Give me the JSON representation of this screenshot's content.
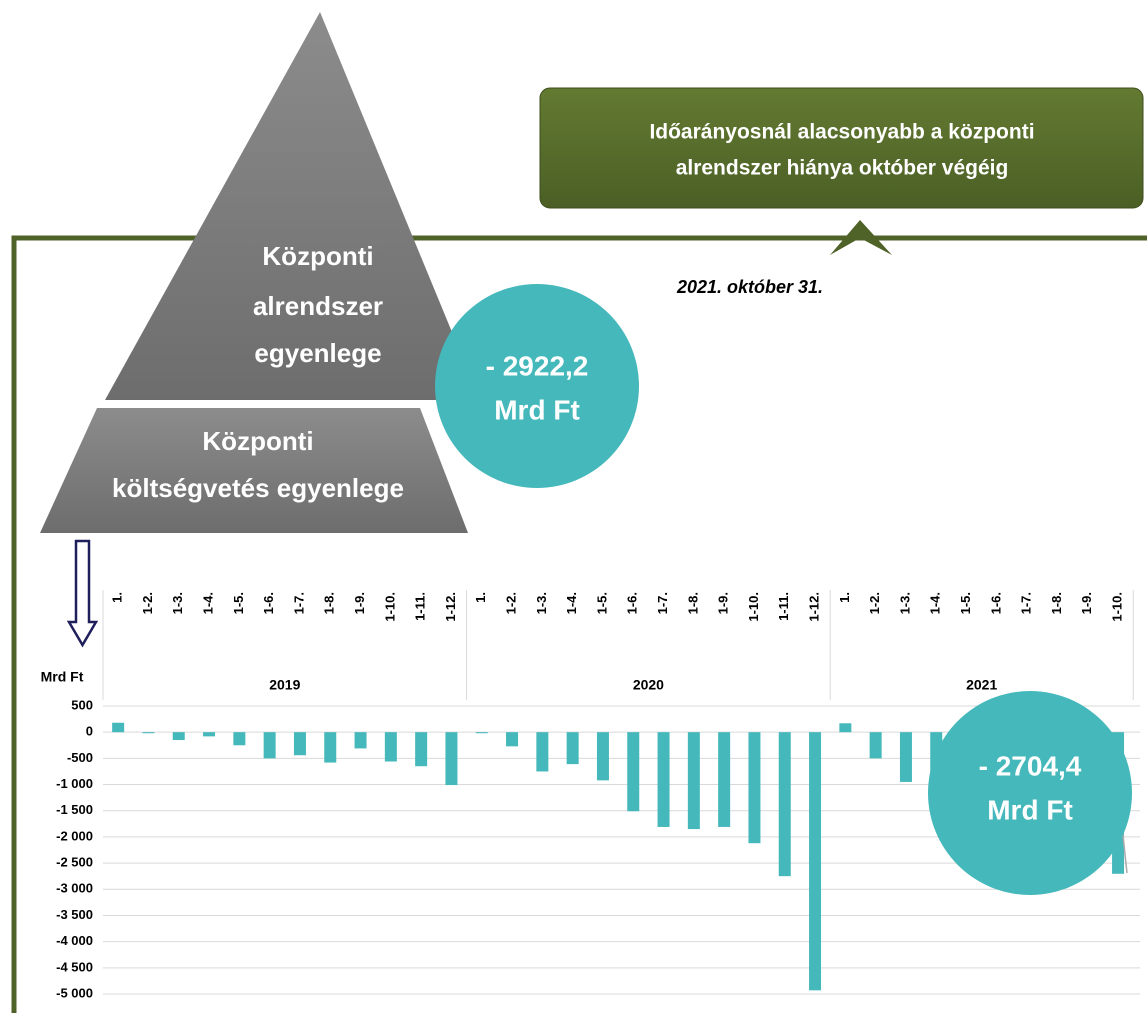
{
  "pyramid": {
    "top": [
      "Központi",
      "alrendszer",
      "egyenlege"
    ],
    "bottom": [
      "Központi",
      "költségvetés  egyenlege"
    ]
  },
  "callout_top": [
    "- 2922,2",
    "Mrd Ft"
  ],
  "headline": [
    "Időarányosnál alacsonyabb a központi",
    "alrendszer hiánya október végéig"
  ],
  "date": "2021. október 31.",
  "callout_bottom": [
    "- 2704,4",
    "Mrd Ft"
  ],
  "chart_data": {
    "type": "bar",
    "y_label": "Mrd Ft",
    "color": "#45b8bb",
    "grid": true,
    "groups": [
      {
        "name": "2019",
        "categories": [
          "1.",
          "1-2.",
          "1-3.",
          "1-4.",
          "1-5.",
          "1-6.",
          "1-7.",
          "1-8.",
          "1-9.",
          "1-10.",
          "1-11.",
          "1-12."
        ]
      },
      {
        "name": "2020",
        "categories": [
          "1.",
          "1-2.",
          "1-3.",
          "1-4.",
          "1-5.",
          "1-6.",
          "1-7.",
          "1-8.",
          "1-9.",
          "1-10.",
          "1-11.",
          "1-12."
        ]
      },
      {
        "name": "2021",
        "categories": [
          "1.",
          "1-2.",
          "1-3.",
          "1-4.",
          "1-5.",
          "1-6.",
          "1-7.",
          "1-8.",
          "1-9.",
          "1-10."
        ]
      }
    ],
    "values": [
      180,
      -20,
      -150,
      -80,
      -250,
      -500,
      -440,
      -580,
      -310,
      -560,
      -650,
      -1010,
      -20,
      -270,
      -750,
      -610,
      -920,
      -1510,
      -1810,
      -1850,
      -1810,
      -2120,
      -2750,
      -4930,
      170,
      -500,
      -950,
      -880,
      -1190,
      -1510,
      -1610,
      -1720,
      -2050,
      -2704.4
    ],
    "ylim": [
      -5000,
      500
    ],
    "yticks": [
      500,
      0,
      -500,
      {
        "value": -1000,
        "label": "-1 000"
      },
      {
        "value": -1500,
        "label": "-1 500"
      },
      {
        "value": -2000,
        "label": "-2 000"
      },
      {
        "value": -2500,
        "label": "-2 500"
      },
      {
        "value": -3000,
        "label": "-3 000"
      },
      {
        "value": -3500,
        "label": "-3 500"
      },
      {
        "value": -4000,
        "label": "-4 000"
      },
      {
        "value": -4500,
        "label": "-4 500"
      },
      {
        "value": -5000,
        "label": "-5 000"
      }
    ]
  }
}
